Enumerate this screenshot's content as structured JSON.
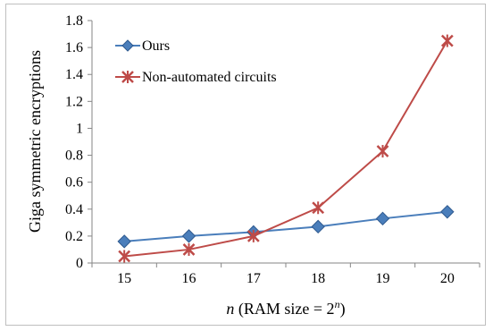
{
  "chart_data": {
    "type": "line",
    "title": "",
    "xlabel": "n (RAM size = 2^n)",
    "xlabel_parts": {
      "var": "n",
      "mid": " (RAM size = 2",
      "sup": "n",
      "end": ")"
    },
    "ylabel": "Giga symmetric encryptions",
    "categories": [
      "15",
      "16",
      "17",
      "18",
      "19",
      "20"
    ],
    "ylim": [
      0,
      1.8
    ],
    "yticks": [
      "0",
      "0.2",
      "0.4",
      "0.6",
      "0.8",
      "1",
      "1.2",
      "1.4",
      "1.6",
      "1.8"
    ],
    "grid": false,
    "legend_position": "top-left",
    "series": [
      {
        "name": "Ours",
        "color": "#4a7ebb",
        "marker": "diamond",
        "values": [
          0.16,
          0.2,
          0.23,
          0.27,
          0.33,
          0.38
        ]
      },
      {
        "name": "Non-automated circuits",
        "color": "#be4b48",
        "marker": "asterisk",
        "values": [
          0.05,
          0.1,
          0.2,
          0.41,
          0.83,
          1.65
        ]
      }
    ]
  }
}
